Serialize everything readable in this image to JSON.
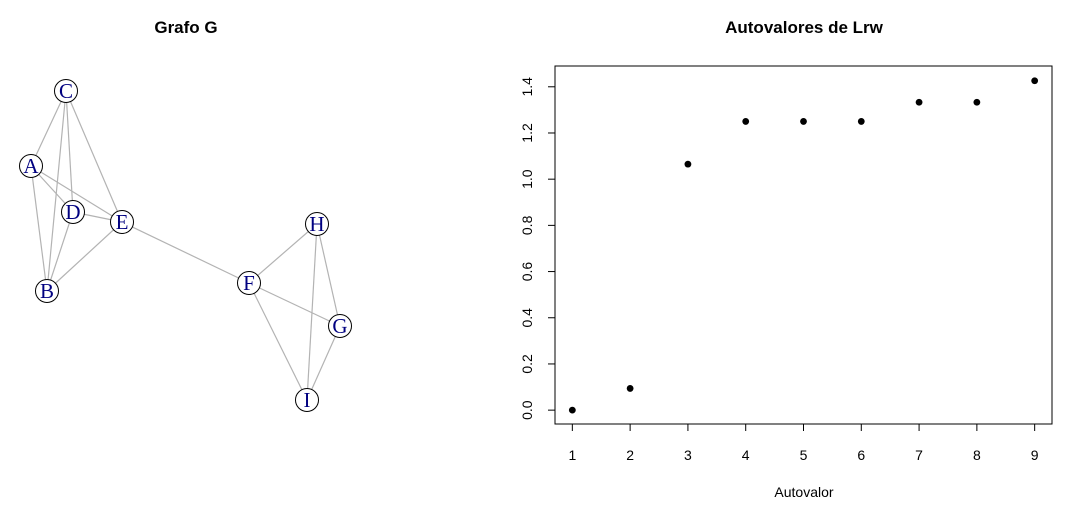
{
  "chart_data": [
    {
      "type": "network",
      "title": "Grafo G",
      "nodes": [
        {
          "id": "A",
          "label": "A"
        },
        {
          "id": "B",
          "label": "B"
        },
        {
          "id": "C",
          "label": "C"
        },
        {
          "id": "D",
          "label": "D"
        },
        {
          "id": "E",
          "label": "E"
        },
        {
          "id": "F",
          "label": "F"
        },
        {
          "id": "G",
          "label": "G"
        },
        {
          "id": "H",
          "label": "H"
        },
        {
          "id": "I",
          "label": "I"
        }
      ],
      "edges": [
        [
          "A",
          "C"
        ],
        [
          "A",
          "D"
        ],
        [
          "A",
          "E"
        ],
        [
          "A",
          "B"
        ],
        [
          "C",
          "D"
        ],
        [
          "C",
          "E"
        ],
        [
          "C",
          "B"
        ],
        [
          "D",
          "E"
        ],
        [
          "D",
          "B"
        ],
        [
          "B",
          "E"
        ],
        [
          "E",
          "F"
        ],
        [
          "F",
          "H"
        ],
        [
          "F",
          "G"
        ],
        [
          "F",
          "I"
        ],
        [
          "H",
          "G"
        ],
        [
          "H",
          "I"
        ],
        [
          "G",
          "I"
        ]
      ],
      "colors": {
        "edge": "#b3b3b3",
        "node_fill": "#ffffff",
        "node_stroke": "#000000",
        "label": "#000080"
      }
    },
    {
      "type": "scatter",
      "title": "Autovalores de Lrw",
      "xlabel": "Autovalor",
      "ylabel": "",
      "x": [
        1,
        2,
        3,
        4,
        5,
        6,
        7,
        8,
        9
      ],
      "y": [
        0.0,
        0.094,
        1.065,
        1.25,
        1.25,
        1.25,
        1.333,
        1.333,
        1.426
      ],
      "xlim": [
        0.7,
        9.3
      ],
      "ylim": [
        -0.06,
        1.49
      ],
      "xticks": [
        1,
        2,
        3,
        4,
        5,
        6,
        7,
        8,
        9
      ],
      "yticks": [
        0.0,
        0.2,
        0.4,
        0.6,
        0.8,
        1.0,
        1.2,
        1.4
      ],
      "ytick_labels": [
        "0.0",
        "0.2",
        "0.4",
        "0.6",
        "0.8",
        "1.0",
        "1.2",
        "1.4"
      ],
      "grid": false,
      "colors": {
        "point": "#000000",
        "axis": "#000000"
      }
    }
  ]
}
